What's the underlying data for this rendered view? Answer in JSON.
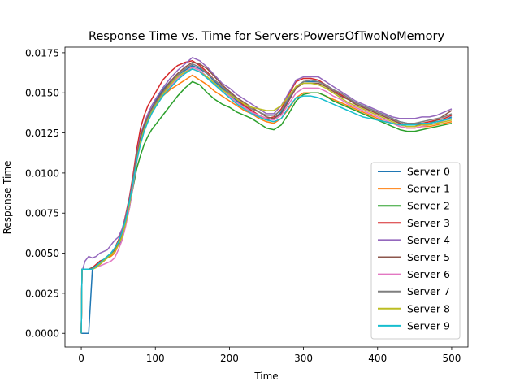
{
  "chart_data": {
    "type": "line",
    "title": "Response Time vs. Time for Servers:PowersOfTwoNoMemory",
    "xlabel": "Time",
    "ylabel": "Response Time",
    "xlim": [
      -22,
      522
    ],
    "ylim": [
      -0.00085,
      0.01785
    ],
    "x_ticks": [
      0,
      100,
      200,
      300,
      400,
      500
    ],
    "x_tick_labels": [
      "0",
      "100",
      "200",
      "300",
      "400",
      "500"
    ],
    "y_ticks": [
      0,
      0.0025,
      0.005,
      0.0075,
      0.01,
      0.0125,
      0.015,
      0.0175
    ],
    "y_tick_labels": [
      "0.0000",
      "0.0025",
      "0.0050",
      "0.0075",
      "0.0100",
      "0.0125",
      "0.0150",
      "0.0175"
    ],
    "grid": false,
    "legend_position": "lower-right",
    "x": [
      0,
      1,
      2,
      5,
      10,
      15,
      20,
      25,
      30,
      35,
      40,
      45,
      50,
      55,
      60,
      65,
      70,
      75,
      80,
      85,
      90,
      95,
      100,
      110,
      120,
      130,
      140,
      150,
      160,
      170,
      180,
      190,
      200,
      210,
      220,
      230,
      240,
      250,
      260,
      270,
      280,
      290,
      300,
      310,
      320,
      330,
      340,
      350,
      360,
      370,
      380,
      390,
      400,
      410,
      420,
      430,
      440,
      450,
      460,
      470,
      480,
      490,
      500
    ],
    "series": [
      {
        "name": "Server 0",
        "color": "#1f77b4",
        "values": [
          0,
          0,
          0,
          0,
          0,
          0.004,
          0.0042,
          0.0045,
          0.0046,
          0.0047,
          0.005,
          0.0052,
          0.0055,
          0.0058,
          0.0068,
          0.0078,
          0.0092,
          0.0108,
          0.0122,
          0.013,
          0.0136,
          0.014,
          0.0145,
          0.0152,
          0.0157,
          0.0161,
          0.0164,
          0.0167,
          0.0165,
          0.0162,
          0.0157,
          0.0153,
          0.0149,
          0.0145,
          0.0141,
          0.0138,
          0.0135,
          0.0133,
          0.0134,
          0.0138,
          0.0146,
          0.0153,
          0.0157,
          0.0157,
          0.0157,
          0.0155,
          0.0152,
          0.0149,
          0.0146,
          0.0144,
          0.0142,
          0.014,
          0.0138,
          0.0136,
          0.0134,
          0.0132,
          0.0131,
          0.0131,
          0.0131,
          0.0131,
          0.0132,
          0.0133,
          0.0135
        ]
      },
      {
        "name": "Server 1",
        "color": "#ff7f0e",
        "values": [
          0,
          0.004,
          0.004,
          0.004,
          0.004,
          0.004,
          0.0042,
          0.0043,
          0.0045,
          0.0047,
          0.0048,
          0.005,
          0.0055,
          0.0062,
          0.007,
          0.0082,
          0.0096,
          0.0111,
          0.0124,
          0.013,
          0.0135,
          0.0139,
          0.0143,
          0.0148,
          0.0152,
          0.0155,
          0.0158,
          0.0161,
          0.0158,
          0.0155,
          0.0151,
          0.0148,
          0.0145,
          0.0142,
          0.0139,
          0.0137,
          0.0134,
          0.0132,
          0.0131,
          0.0134,
          0.014,
          0.0147,
          0.015,
          0.015,
          0.015,
          0.0148,
          0.0146,
          0.0144,
          0.0142,
          0.014,
          0.0138,
          0.0136,
          0.0134,
          0.0132,
          0.0131,
          0.0129,
          0.0128,
          0.0128,
          0.0129,
          0.0129,
          0.013,
          0.0131,
          0.0132
        ]
      },
      {
        "name": "Server 2",
        "color": "#2ca02c",
        "values": [
          0,
          0.004,
          0.004,
          0.004,
          0.004,
          0.004,
          0.0041,
          0.0043,
          0.0045,
          0.0047,
          0.0049,
          0.0052,
          0.0056,
          0.0061,
          0.0069,
          0.0079,
          0.0091,
          0.0103,
          0.0111,
          0.0118,
          0.0123,
          0.0127,
          0.013,
          0.0136,
          0.0142,
          0.0148,
          0.0153,
          0.0157,
          0.0155,
          0.015,
          0.0146,
          0.0143,
          0.0141,
          0.0138,
          0.0136,
          0.0134,
          0.0131,
          0.0128,
          0.0127,
          0.013,
          0.0137,
          0.0145,
          0.0149,
          0.015,
          0.015,
          0.0148,
          0.0145,
          0.0143,
          0.0141,
          0.0139,
          0.0137,
          0.0135,
          0.0133,
          0.0131,
          0.0129,
          0.0127,
          0.0126,
          0.0126,
          0.0127,
          0.0128,
          0.0129,
          0.013,
          0.0131
        ]
      },
      {
        "name": "Server 3",
        "color": "#d62728",
        "values": [
          0,
          0.004,
          0.004,
          0.004,
          0.004,
          0.0041,
          0.0043,
          0.0045,
          0.0046,
          0.0048,
          0.005,
          0.0053,
          0.0058,
          0.0064,
          0.0074,
          0.0085,
          0.0099,
          0.0115,
          0.0128,
          0.0136,
          0.0142,
          0.0146,
          0.015,
          0.0158,
          0.0163,
          0.0167,
          0.0169,
          0.017,
          0.0167,
          0.0163,
          0.0158,
          0.0154,
          0.015,
          0.0146,
          0.0142,
          0.0139,
          0.0136,
          0.0134,
          0.0135,
          0.014,
          0.0149,
          0.0157,
          0.0159,
          0.0159,
          0.0158,
          0.0155,
          0.0152,
          0.0149,
          0.0146,
          0.0143,
          0.0141,
          0.0139,
          0.0137,
          0.0135,
          0.0133,
          0.0131,
          0.013,
          0.013,
          0.0131,
          0.0132,
          0.0133,
          0.0134,
          0.0136
        ]
      },
      {
        "name": "Server 4",
        "color": "#9467bd",
        "values": [
          0,
          0.004,
          0.004,
          0.0045,
          0.0048,
          0.0047,
          0.0048,
          0.005,
          0.0051,
          0.0052,
          0.0055,
          0.0058,
          0.006,
          0.0065,
          0.0073,
          0.0084,
          0.0097,
          0.0112,
          0.0124,
          0.0131,
          0.0137,
          0.0142,
          0.0146,
          0.0153,
          0.0159,
          0.0164,
          0.0168,
          0.0172,
          0.017,
          0.0166,
          0.0161,
          0.0156,
          0.0153,
          0.0149,
          0.0146,
          0.0143,
          0.014,
          0.0137,
          0.0137,
          0.0142,
          0.015,
          0.0158,
          0.016,
          0.016,
          0.016,
          0.0157,
          0.0154,
          0.0151,
          0.0148,
          0.0145,
          0.0143,
          0.0141,
          0.0139,
          0.0137,
          0.0135,
          0.0134,
          0.0134,
          0.0134,
          0.0135,
          0.0135,
          0.0136,
          0.0138,
          0.014
        ]
      },
      {
        "name": "Server 5",
        "color": "#8c564b",
        "values": [
          0,
          0.004,
          0.004,
          0.004,
          0.004,
          0.0041,
          0.0042,
          0.0044,
          0.0045,
          0.0047,
          0.0049,
          0.0052,
          0.0057,
          0.0063,
          0.0072,
          0.0083,
          0.0096,
          0.0111,
          0.0122,
          0.013,
          0.0135,
          0.014,
          0.0144,
          0.0151,
          0.0157,
          0.0162,
          0.0166,
          0.0169,
          0.0168,
          0.0165,
          0.016,
          0.0155,
          0.0151,
          0.0147,
          0.0144,
          0.0141,
          0.0138,
          0.0135,
          0.0134,
          0.0137,
          0.0145,
          0.0153,
          0.0156,
          0.0156,
          0.0156,
          0.0154,
          0.0151,
          0.0148,
          0.0146,
          0.0143,
          0.0141,
          0.0139,
          0.0137,
          0.0135,
          0.0133,
          0.0131,
          0.013,
          0.013,
          0.013,
          0.0131,
          0.0133,
          0.0136,
          0.0139
        ]
      },
      {
        "name": "Server 6",
        "color": "#e377c2",
        "values": [
          0,
          0.004,
          0.004,
          0.004,
          0.004,
          0.004,
          0.0041,
          0.0042,
          0.0043,
          0.0044,
          0.0045,
          0.0047,
          0.0052,
          0.0058,
          0.0067,
          0.0078,
          0.0092,
          0.0107,
          0.0119,
          0.0127,
          0.0132,
          0.0137,
          0.0141,
          0.0148,
          0.0154,
          0.0159,
          0.0163,
          0.0166,
          0.0164,
          0.016,
          0.0156,
          0.0152,
          0.0148,
          0.0144,
          0.0141,
          0.0138,
          0.0136,
          0.0134,
          0.0133,
          0.0136,
          0.0143,
          0.015,
          0.0153,
          0.0153,
          0.0153,
          0.0151,
          0.0148,
          0.0146,
          0.0143,
          0.0141,
          0.0139,
          0.0137,
          0.0135,
          0.0133,
          0.0131,
          0.0129,
          0.0128,
          0.0128,
          0.0129,
          0.013,
          0.0131,
          0.0133,
          0.0134
        ]
      },
      {
        "name": "Server 7",
        "color": "#7f7f7f",
        "values": [
          0,
          0.004,
          0.004,
          0.004,
          0.004,
          0.004,
          0.0042,
          0.0044,
          0.0046,
          0.0048,
          0.005,
          0.0053,
          0.0057,
          0.0062,
          0.0071,
          0.0082,
          0.0095,
          0.0109,
          0.012,
          0.0128,
          0.0134,
          0.0139,
          0.0143,
          0.015,
          0.0156,
          0.0161,
          0.0165,
          0.0168,
          0.0166,
          0.0162,
          0.0158,
          0.0154,
          0.015,
          0.0146,
          0.0143,
          0.014,
          0.0138,
          0.0136,
          0.0136,
          0.0139,
          0.0147,
          0.0154,
          0.0157,
          0.0158,
          0.0157,
          0.0155,
          0.0152,
          0.015,
          0.0147,
          0.0144,
          0.0142,
          0.014,
          0.0138,
          0.0136,
          0.0134,
          0.0132,
          0.0131,
          0.0131,
          0.0132,
          0.0133,
          0.0134,
          0.0135,
          0.0137
        ]
      },
      {
        "name": "Server 8",
        "color": "#bcbd22",
        "values": [
          0,
          0.004,
          0.004,
          0.004,
          0.004,
          0.004,
          0.0041,
          0.0043,
          0.0045,
          0.0047,
          0.0049,
          0.0051,
          0.0055,
          0.006,
          0.0069,
          0.008,
          0.0094,
          0.0108,
          0.012,
          0.0127,
          0.0133,
          0.0138,
          0.0142,
          0.0149,
          0.0155,
          0.016,
          0.0163,
          0.0165,
          0.0163,
          0.016,
          0.0156,
          0.0152,
          0.0149,
          0.0146,
          0.0143,
          0.0141,
          0.014,
          0.0139,
          0.0139,
          0.0142,
          0.0148,
          0.0154,
          0.0156,
          0.0156,
          0.0155,
          0.0153,
          0.015,
          0.0147,
          0.0144,
          0.0142,
          0.014,
          0.0138,
          0.0136,
          0.0134,
          0.0132,
          0.013,
          0.0129,
          0.0129,
          0.013,
          0.013,
          0.0131,
          0.0132,
          0.0133
        ]
      },
      {
        "name": "Server 9",
        "color": "#17becf",
        "values": [
          0,
          0.004,
          0.004,
          0.004,
          0.004,
          0.004,
          0.0042,
          0.0044,
          0.0046,
          0.0048,
          0.005,
          0.0053,
          0.0057,
          0.0063,
          0.0071,
          0.0082,
          0.0094,
          0.0108,
          0.0118,
          0.0126,
          0.0132,
          0.0137,
          0.0141,
          0.0148,
          0.0153,
          0.0158,
          0.0162,
          0.0165,
          0.0163,
          0.0159,
          0.0155,
          0.0151,
          0.0147,
          0.0143,
          0.014,
          0.0137,
          0.0135,
          0.0133,
          0.0132,
          0.0134,
          0.0141,
          0.0147,
          0.0148,
          0.0148,
          0.0147,
          0.0145,
          0.0143,
          0.0141,
          0.0139,
          0.0137,
          0.0135,
          0.0134,
          0.0133,
          0.0132,
          0.0131,
          0.013,
          0.013,
          0.013,
          0.0131,
          0.0131,
          0.0132,
          0.0133,
          0.0134
        ]
      }
    ]
  }
}
